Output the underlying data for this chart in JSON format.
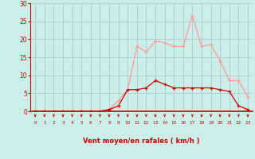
{
  "x": [
    0,
    1,
    2,
    3,
    4,
    5,
    6,
    7,
    8,
    9,
    10,
    11,
    12,
    13,
    14,
    15,
    16,
    17,
    18,
    19,
    20,
    21,
    22,
    23
  ],
  "y_avg": [
    0,
    0,
    0,
    0,
    0,
    0,
    0,
    0,
    0.5,
    1.5,
    6,
    6,
    6.5,
    8.5,
    7.5,
    6.5,
    6.5,
    6.5,
    6.5,
    6.5,
    6,
    5.5,
    1.5,
    0.5
  ],
  "y_gust": [
    0,
    0,
    0,
    0,
    0,
    0,
    0,
    0,
    0.5,
    3,
    6,
    18,
    16.5,
    19.5,
    19,
    18,
    18,
    26.5,
    18,
    18.5,
    14,
    8.5,
    8.5,
    4
  ],
  "bg_color": "#cceee8",
  "grid_color": "#aacccc",
  "line_avg_color": "#cc0000",
  "line_gust_color": "#ff9999",
  "marker_avg_color": "#cc0000",
  "marker_gust_color": "#ff9999",
  "axis_color": "#cc0000",
  "xlabel": "Vent moyen/en rafales ( km/h )",
  "xlabel_color": "#cc0000",
  "ylim": [
    0,
    30
  ],
  "yticks": [
    0,
    5,
    10,
    15,
    20,
    25,
    30
  ],
  "xlim": [
    -0.5,
    23.5
  ],
  "xticks": [
    0,
    1,
    2,
    3,
    4,
    5,
    6,
    7,
    8,
    9,
    10,
    11,
    12,
    13,
    14,
    15,
    16,
    17,
    18,
    19,
    20,
    21,
    22,
    23
  ]
}
